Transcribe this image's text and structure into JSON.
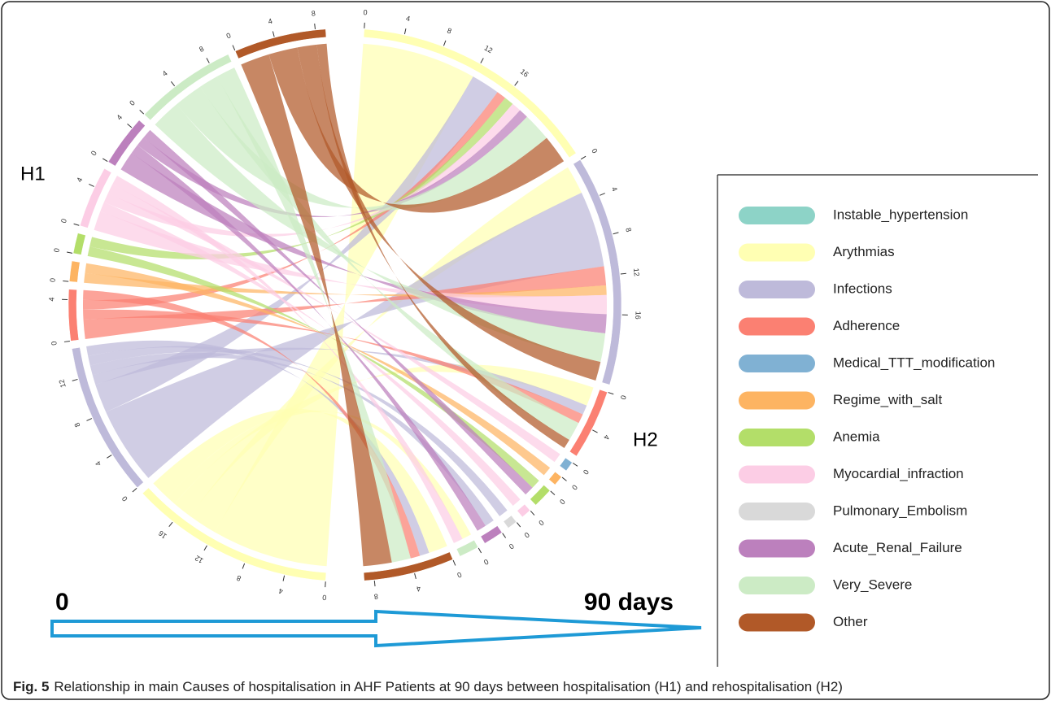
{
  "chart_data": {
    "type": "chord",
    "side_labels": [
      "H1",
      "H2"
    ],
    "time_start": "0",
    "time_end": "90 days",
    "caption_label": "Fig. 5",
    "caption": "Relationship in main Causes of hospitalisation in AHF Patients at 90 days between hospitalisation (H1) and rehospitalisation (H2)",
    "categories": [
      {
        "name": "Instable_hypertension",
        "color": "#8dd3c7"
      },
      {
        "name": "Arythmias",
        "color": "#ffffb3"
      },
      {
        "name": "Infections",
        "color": "#bebada"
      },
      {
        "name": "Adherence",
        "color": "#fb8072"
      },
      {
        "name": "Medical_TTT_modification",
        "color": "#80b1d3"
      },
      {
        "name": "Regime_with_salt",
        "color": "#fdb462"
      },
      {
        "name": "Anemia",
        "color": "#b3de69"
      },
      {
        "name": "Myocardial_infraction",
        "color": "#fccde5"
      },
      {
        "name": "Pulmonary_Embolism",
        "color": "#d9d9d9"
      },
      {
        "name": "Acute_Renal_Failure",
        "color": "#bc80bd"
      },
      {
        "name": "Very_Severe",
        "color": "#ccebc5"
      },
      {
        "name": "Other",
        "color": "#b15928"
      }
    ],
    "flows": [
      {
        "from": 1,
        "to": 1,
        "value": 12
      },
      {
        "from": 1,
        "to": 2,
        "value": 3
      },
      {
        "from": 1,
        "to": 3,
        "value": 2
      },
      {
        "from": 1,
        "to": 10,
        "value": 1
      },
      {
        "from": 1,
        "to": 11,
        "value": 2
      },
      {
        "from": 2,
        "to": 2,
        "value": 8
      },
      {
        "from": 2,
        "to": 1,
        "value": 3
      },
      {
        "from": 2,
        "to": 3,
        "value": 1
      },
      {
        "from": 2,
        "to": 9,
        "value": 1
      },
      {
        "from": 2,
        "to": 8,
        "value": 1
      },
      {
        "from": 2,
        "to": 11,
        "value": 1
      },
      {
        "from": 3,
        "to": 2,
        "value": 2
      },
      {
        "from": 3,
        "to": 3,
        "value": 1
      },
      {
        "from": 3,
        "to": 1,
        "value": 1
      },
      {
        "from": 3,
        "to": 11,
        "value": 1
      },
      {
        "from": 5,
        "to": 2,
        "value": 1
      },
      {
        "from": 5,
        "to": 5,
        "value": 1
      },
      {
        "from": 6,
        "to": 6,
        "value": 1
      },
      {
        "from": 6,
        "to": 1,
        "value": 1
      },
      {
        "from": 7,
        "to": 2,
        "value": 2
      },
      {
        "from": 7,
        "to": 7,
        "value": 1
      },
      {
        "from": 7,
        "to": 1,
        "value": 1
      },
      {
        "from": 7,
        "to": 4,
        "value": 1
      },
      {
        "from": 7,
        "to": 10,
        "value": 1
      },
      {
        "from": 9,
        "to": 2,
        "value": 2
      },
      {
        "from": 9,
        "to": 9,
        "value": 1
      },
      {
        "from": 9,
        "to": 1,
        "value": 1
      },
      {
        "from": 9,
        "to": 6,
        "value": 1
      },
      {
        "from": 10,
        "to": 2,
        "value": 3
      },
      {
        "from": 10,
        "to": 1,
        "value": 3
      },
      {
        "from": 10,
        "to": 3,
        "value": 2
      },
      {
        "from": 10,
        "to": 11,
        "value": 2
      },
      {
        "from": 11,
        "to": 11,
        "value": 3
      },
      {
        "from": 11,
        "to": 1,
        "value": 3
      },
      {
        "from": 11,
        "to": 2,
        "value": 2
      },
      {
        "from": 11,
        "to": 3,
        "value": 1
      }
    ],
    "arc_ticks": [
      0,
      4,
      8,
      12,
      16
    ]
  }
}
